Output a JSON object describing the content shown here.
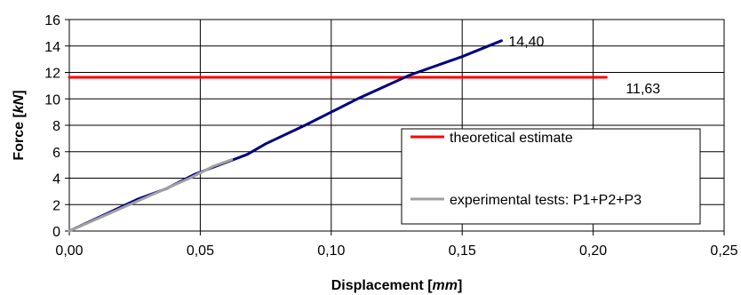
{
  "chart_data": {
    "type": "line",
    "title": "",
    "xlabel_parts": [
      {
        "text": "Displacement [",
        "italic": false
      },
      {
        "text": "mm",
        "italic": true
      },
      {
        "text": "]",
        "italic": false
      }
    ],
    "ylabel_parts": [
      {
        "text": "Force [",
        "italic": false
      },
      {
        "text": "kN",
        "italic": true
      },
      {
        "text": "]",
        "italic": false
      }
    ],
    "xlim": [
      0,
      0.25
    ],
    "ylim": [
      0,
      16
    ],
    "x_ticks": [
      0,
      0.05,
      0.1,
      0.15,
      0.2,
      0.25
    ],
    "x_tick_labels": [
      "0,00",
      "0,05",
      "0,10",
      "0,15",
      "0,20",
      "0,25"
    ],
    "y_ticks": [
      0,
      2,
      4,
      6,
      8,
      10,
      12,
      14,
      16
    ],
    "y_tick_labels": [
      "0",
      "2",
      "4",
      "6",
      "8",
      "10",
      "12",
      "14",
      "16"
    ],
    "grid": true,
    "legend_position": "bottom-right",
    "series": [
      {
        "name": "theoretical estimate",
        "color": "#ff0000",
        "points": [
          [
            0,
            11.63
          ],
          [
            0.205,
            11.63
          ]
        ]
      },
      {
        "name": "experimental tests: P1+P2+P3",
        "color": "#a0a0a0",
        "points": [
          [
            0,
            0
          ],
          [
            0.046,
            4.0
          ],
          [
            0.055,
            4.9
          ],
          [
            0.062,
            5.4
          ]
        ]
      },
      {
        "name": "",
        "color": "#000080",
        "points": [
          [
            0,
            0
          ],
          [
            0.013,
            1.2
          ],
          [
            0.026,
            2.4
          ],
          [
            0.037,
            3.2
          ],
          [
            0.048,
            4.3
          ],
          [
            0.06,
            5.2
          ],
          [
            0.068,
            5.8
          ],
          [
            0.075,
            6.6
          ],
          [
            0.09,
            8.0
          ],
          [
            0.11,
            10.0
          ],
          [
            0.13,
            11.8
          ],
          [
            0.15,
            13.2
          ],
          [
            0.165,
            14.4
          ]
        ]
      }
    ],
    "annotations": [
      {
        "text": "14,40",
        "x": 0.165,
        "y": 14.4
      },
      {
        "text": "11,63",
        "x": 0.205,
        "y": 11.63
      }
    ]
  }
}
